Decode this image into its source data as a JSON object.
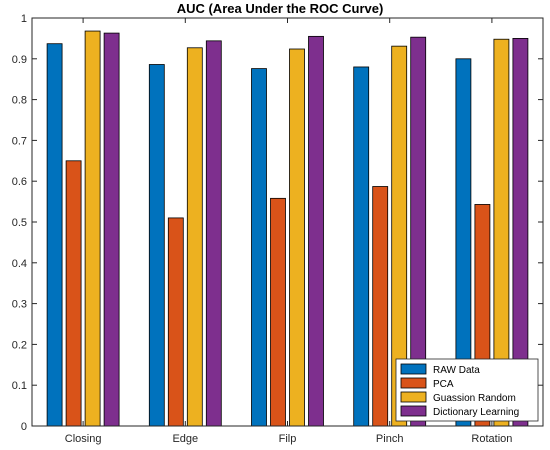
{
  "chart_data": {
    "type": "bar",
    "title": "AUC (Area Under the ROC Curve)",
    "xlabel": "",
    "ylabel": "",
    "categories": [
      "Closing",
      "Edge",
      "Filp",
      "Pinch",
      "Rotation"
    ],
    "ylim": [
      0,
      1
    ],
    "yticks": [
      0,
      0.1,
      0.2,
      0.3,
      0.4,
      0.5,
      0.6,
      0.7,
      0.8,
      0.9,
      1
    ],
    "grid": false,
    "legend_position": "bottom-right",
    "series": [
      {
        "name": "RAW Data",
        "color": "#0072BD",
        "values": [
          0.937,
          0.886,
          0.876,
          0.88,
          0.9
        ]
      },
      {
        "name": "PCA",
        "color": "#D95319",
        "values": [
          0.65,
          0.51,
          0.558,
          0.587,
          0.543
        ]
      },
      {
        "name": "Guassion Random",
        "color": "#EDB120",
        "values": [
          0.968,
          0.927,
          0.924,
          0.931,
          0.948
        ]
      },
      {
        "name": "Dictionary Learning",
        "color": "#7E2F8E",
        "values": [
          0.963,
          0.944,
          0.955,
          0.953,
          0.95
        ]
      }
    ]
  }
}
